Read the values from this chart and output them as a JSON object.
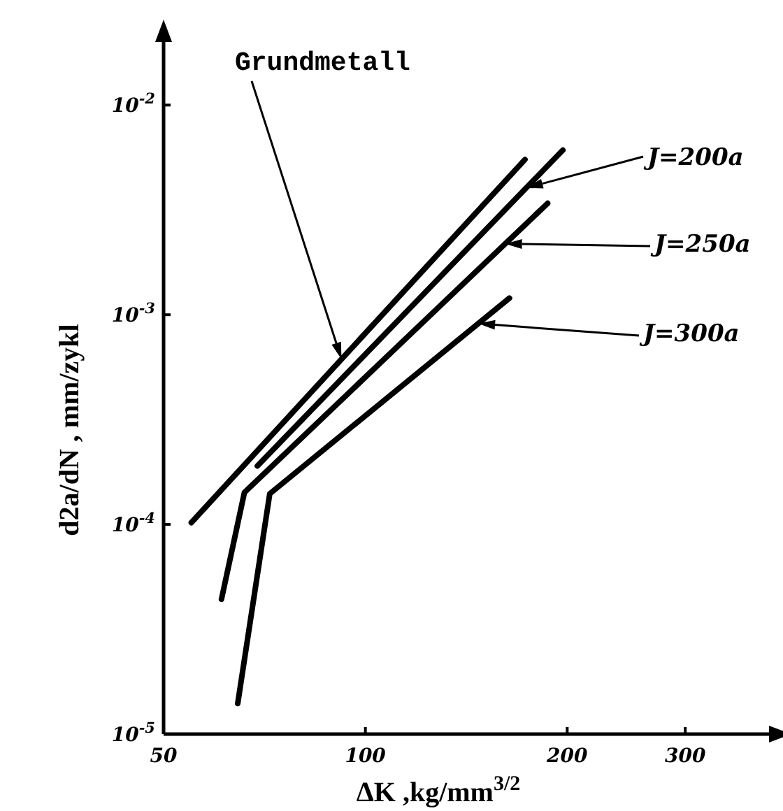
{
  "chart_data": {
    "type": "line",
    "xlabel": "ΔK ,kg/mm$^{3/2}$",
    "ylabel": "d2a/dN , mm/zykl",
    "log": "xy",
    "xlim": [
      50,
      400
    ],
    "ylim": [
      1e-05,
      0.02
    ],
    "xticks": [
      50,
      100,
      200,
      300
    ],
    "yticks": [
      {
        "value": 1e-05,
        "label": "10$^{-5}$"
      },
      {
        "value": 0.0001,
        "label": "10$^{-4}$"
      },
      {
        "value": 0.001,
        "label": "10$^{-3}$"
      },
      {
        "value": 0.01,
        "label": "10$^{-2}$"
      }
    ],
    "grid": false,
    "legend": "right",
    "marker": "none",
    "line_style": "solid",
    "series": [
      {
        "name": "Grundmetall",
        "color": "#000000",
        "x": [
          55,
          173
        ],
        "values": [
          0.000102,
          0.0055
        ]
      },
      {
        "name": "J=200a",
        "color": "#000000",
        "x": [
          69,
          197
        ],
        "values": [
          0.00019,
          0.0061
        ]
      },
      {
        "name": "J=250a",
        "color": "#000000",
        "x": [
          61,
          66,
          187
        ],
        "values": [
          4.4e-05,
          0.000142,
          0.0034
        ]
      },
      {
        "name": "J=300a",
        "color": "#000000",
        "x": [
          64.5,
          72,
          164
        ],
        "values": [
          1.4e-05,
          0.00014,
          0.0012
        ]
      }
    ]
  }
}
